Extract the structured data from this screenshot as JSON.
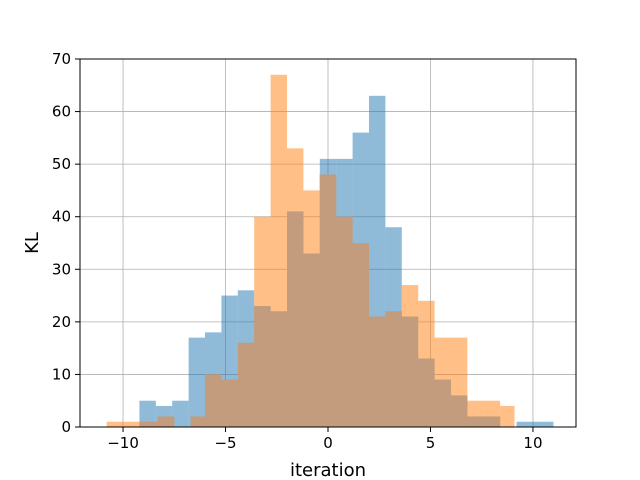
{
  "chart_data": {
    "type": "histogram",
    "xlabel": "iteration",
    "ylabel": "KL",
    "xlim": [
      -12.1,
      12.1
    ],
    "ylim": [
      0,
      70
    ],
    "x_ticks": [
      -10,
      -5,
      0,
      5,
      10
    ],
    "x_tick_labels": [
      "−10",
      "−5",
      "0",
      "5",
      "10"
    ],
    "y_ticks": [
      0,
      10,
      20,
      30,
      40,
      50,
      60,
      70
    ],
    "y_tick_labels": [
      "0",
      "10",
      "20",
      "30",
      "40",
      "50",
      "60",
      "70"
    ],
    "grid": true,
    "overlap_color": "#c29c7c",
    "series": [
      {
        "color": "#1f77b4",
        "alpha": 0.5,
        "bins": [
          {
            "x0": -9.2,
            "x1": -8.4,
            "count": 5
          },
          {
            "x0": -8.4,
            "x1": -7.6,
            "count": 4
          },
          {
            "x0": -7.6,
            "x1": -6.8,
            "count": 5
          },
          {
            "x0": -6.8,
            "x1": -6.0,
            "count": 17
          },
          {
            "x0": -6.0,
            "x1": -5.2,
            "count": 18
          },
          {
            "x0": -5.2,
            "x1": -4.4,
            "count": 25
          },
          {
            "x0": -4.4,
            "x1": -3.6,
            "count": 26
          },
          {
            "x0": -3.6,
            "x1": -2.8,
            "count": 23
          },
          {
            "x0": -2.8,
            "x1": -2.0,
            "count": 22
          },
          {
            "x0": -2.0,
            "x1": -1.2,
            "count": 41
          },
          {
            "x0": -1.2,
            "x1": -0.4,
            "count": 33
          },
          {
            "x0": -0.4,
            "x1": 0.4,
            "count": 51
          },
          {
            "x0": 0.4,
            "x1": 1.2,
            "count": 51
          },
          {
            "x0": 1.2,
            "x1": 2.0,
            "count": 56
          },
          {
            "x0": 2.0,
            "x1": 2.8,
            "count": 63
          },
          {
            "x0": 2.8,
            "x1": 3.6,
            "count": 38
          },
          {
            "x0": 3.6,
            "x1": 4.4,
            "count": 21
          },
          {
            "x0": 4.4,
            "x1": 5.2,
            "count": 13
          },
          {
            "x0": 5.2,
            "x1": 6.0,
            "count": 9
          },
          {
            "x0": 6.0,
            "x1": 6.8,
            "count": 6
          },
          {
            "x0": 6.8,
            "x1": 7.6,
            "count": 2
          },
          {
            "x0": 7.6,
            "x1": 8.4,
            "count": 2
          },
          {
            "x0": 8.4,
            "x1": 9.2,
            "count": 0
          },
          {
            "x0": 9.2,
            "x1": 10.0,
            "count": 1
          },
          {
            "x0": 10.0,
            "x1": 11.0,
            "count": 1
          }
        ]
      },
      {
        "color": "#ff7f0e",
        "alpha": 0.5,
        "bins": [
          {
            "x0": -10.8,
            "x1": -9.1,
            "count": 1
          },
          {
            "x0": -9.1,
            "x1": -8.3,
            "count": 1
          },
          {
            "x0": -8.3,
            "x1": -7.5,
            "count": 2
          },
          {
            "x0": -7.5,
            "x1": -6.7,
            "count": 0
          },
          {
            "x0": -6.7,
            "x1": -6.0,
            "count": 2
          },
          {
            "x0": -6.0,
            "x1": -5.2,
            "count": 10
          },
          {
            "x0": -5.2,
            "x1": -4.4,
            "count": 9
          },
          {
            "x0": -4.4,
            "x1": -3.6,
            "count": 16
          },
          {
            "x0": -3.6,
            "x1": -2.8,
            "count": 40
          },
          {
            "x0": -2.8,
            "x1": -2.0,
            "count": 67
          },
          {
            "x0": -2.0,
            "x1": -1.2,
            "count": 53
          },
          {
            "x0": -1.2,
            "x1": -0.4,
            "count": 45
          },
          {
            "x0": -0.4,
            "x1": 0.4,
            "count": 48
          },
          {
            "x0": 0.4,
            "x1": 1.2,
            "count": 40
          },
          {
            "x0": 1.2,
            "x1": 2.0,
            "count": 35
          },
          {
            "x0": 2.0,
            "x1": 2.8,
            "count": 21
          },
          {
            "x0": 2.8,
            "x1": 3.6,
            "count": 22
          },
          {
            "x0": 3.6,
            "x1": 4.4,
            "count": 27
          },
          {
            "x0": 4.4,
            "x1": 5.2,
            "count": 24
          },
          {
            "x0": 5.2,
            "x1": 6.0,
            "count": 17
          },
          {
            "x0": 6.0,
            "x1": 6.8,
            "count": 17
          },
          {
            "x0": 6.8,
            "x1": 7.6,
            "count": 5
          },
          {
            "x0": 7.6,
            "x1": 8.4,
            "count": 5
          },
          {
            "x0": 8.4,
            "x1": 9.1,
            "count": 4
          }
        ]
      }
    ]
  }
}
